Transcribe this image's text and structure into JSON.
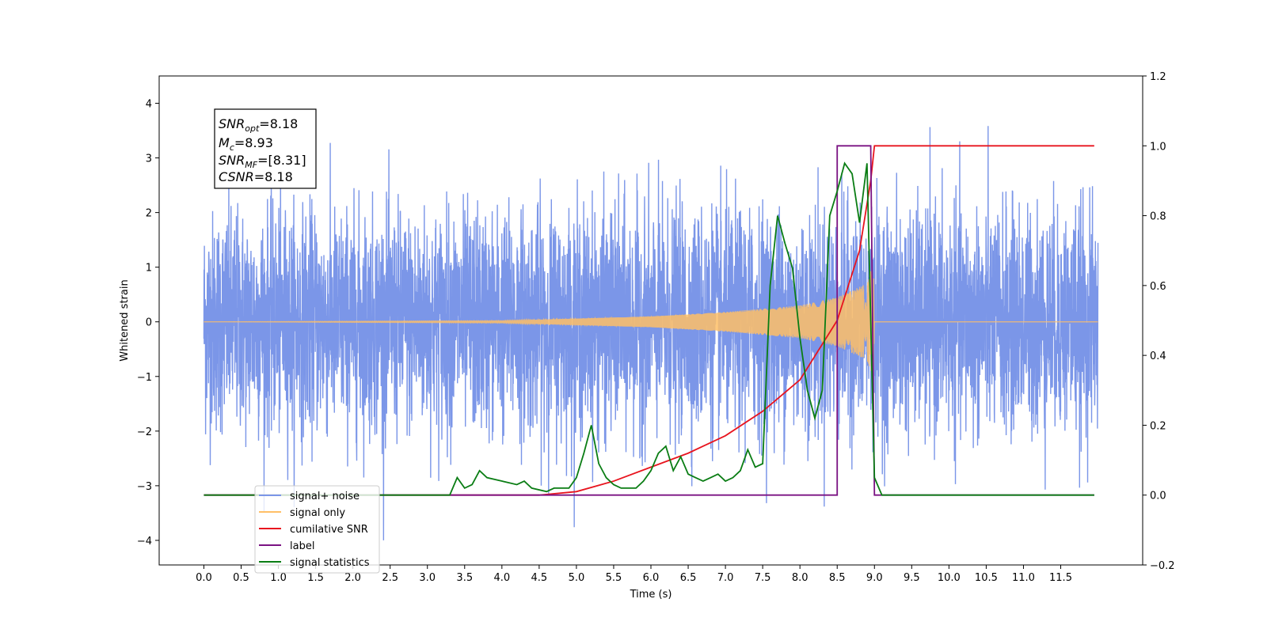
{
  "chart_data": {
    "type": "line",
    "xlabel": "Time (s)",
    "ylabel": "Whitened strain",
    "ylabel_right": "",
    "xlim": [
      -0.6,
      12.6
    ],
    "ylim": [
      -4.45,
      4.5
    ],
    "ylim_right": [
      -0.2,
      1.2
    ],
    "xticks": [
      0.0,
      0.5,
      1.0,
      1.5,
      2.0,
      2.5,
      3.0,
      3.5,
      4.0,
      4.5,
      5.0,
      5.5,
      6.0,
      6.5,
      7.0,
      7.5,
      8.0,
      8.5,
      9.0,
      9.5,
      10.0,
      10.5,
      11.0,
      11.5
    ],
    "xtick_labels": [
      "0.0",
      "0.5",
      "1.0",
      "1.5",
      "2.0",
      "2.5",
      "3.0",
      "3.5",
      "4.0",
      "4.5",
      "5.0",
      "5.5",
      "6.0",
      "6.5",
      "7.0",
      "7.5",
      "8.0",
      "8.5",
      "9.0",
      "9.5",
      "10.0",
      "10.5",
      "11.0",
      "11.5"
    ],
    "yticks_left": [
      -4,
      -3,
      -2,
      -1,
      0,
      1,
      2,
      3,
      4
    ],
    "ytick_labels_left": [
      "−4",
      "−3",
      "−2",
      "−1",
      "0",
      "1",
      "2",
      "3",
      "4"
    ],
    "yticks_right": [
      -0.2,
      0.0,
      0.2,
      0.4,
      0.6,
      0.8,
      1.0,
      1.2
    ],
    "ytick_labels_right": [
      "−0.2",
      "0.0",
      "0.2",
      "0.4",
      "0.6",
      "0.8",
      "1.0",
      "1.2"
    ],
    "grid": false,
    "legend_position": "bottom-left",
    "stats_box": {
      "snr_opt": {
        "base": "SNR",
        "sub": "opt",
        "value": "=8.18"
      },
      "mc": {
        "base": "M",
        "sub": "c",
        "value": "=8.93"
      },
      "snr_mf": {
        "base": "SNR",
        "sub": "MF",
        "value": "=[8.31]"
      },
      "csnr": {
        "base": "CSNR",
        "sub": "",
        "value": "=8.18"
      }
    },
    "series": [
      {
        "name": "signal+ noise",
        "axis": "left",
        "color": "#7b96e8",
        "kind": "noise",
        "x_range": [
          0.0,
          12.0
        ],
        "std": 1.0,
        "approx_range": [
          -4.0,
          4.1
        ]
      },
      {
        "name": "signal only",
        "axis": "left",
        "color": "#ffbf66",
        "kind": "chirp",
        "x_range": [
          0.0,
          9.0
        ],
        "amplitude_points": [
          [
            0.0,
            0.0
          ],
          [
            4.0,
            0.02
          ],
          [
            5.0,
            0.06
          ],
          [
            6.0,
            0.1
          ],
          [
            7.0,
            0.18
          ],
          [
            8.0,
            0.3
          ],
          [
            8.5,
            0.45
          ],
          [
            8.9,
            0.7
          ],
          [
            8.99,
            1.1
          ],
          [
            9.0,
            0.0
          ]
        ]
      },
      {
        "name": "cumilative SNR",
        "axis": "right",
        "color": "#e8141e",
        "points": [
          [
            0.0,
            0.0
          ],
          [
            4.5,
            0.0
          ],
          [
            5.0,
            0.01
          ],
          [
            5.5,
            0.04
          ],
          [
            6.0,
            0.08
          ],
          [
            6.5,
            0.12
          ],
          [
            7.0,
            0.17
          ],
          [
            7.5,
            0.24
          ],
          [
            8.0,
            0.33
          ],
          [
            8.5,
            0.5
          ],
          [
            8.8,
            0.7
          ],
          [
            8.95,
            0.9
          ],
          [
            9.0,
            1.0
          ],
          [
            11.95,
            1.0
          ]
        ]
      },
      {
        "name": "label",
        "axis": "right",
        "color": "#7a1282",
        "points": [
          [
            0.0,
            0.0
          ],
          [
            8.5,
            0.0
          ],
          [
            8.5,
            1.0
          ],
          [
            8.95,
            1.0
          ],
          [
            9.0,
            0.0
          ],
          [
            11.95,
            0.0
          ]
        ]
      },
      {
        "name": "signal statistics",
        "axis": "right",
        "color": "#0a7d14",
        "points": [
          [
            0.0,
            0.0
          ],
          [
            3.3,
            0.0
          ],
          [
            3.4,
            0.05
          ],
          [
            3.5,
            0.02
          ],
          [
            3.6,
            0.03
          ],
          [
            3.7,
            0.07
          ],
          [
            3.8,
            0.05
          ],
          [
            4.0,
            0.04
          ],
          [
            4.2,
            0.03
          ],
          [
            4.3,
            0.04
          ],
          [
            4.4,
            0.02
          ],
          [
            4.6,
            0.01
          ],
          [
            4.7,
            0.02
          ],
          [
            4.9,
            0.02
          ],
          [
            5.0,
            0.05
          ],
          [
            5.1,
            0.12
          ],
          [
            5.2,
            0.2
          ],
          [
            5.3,
            0.09
          ],
          [
            5.4,
            0.05
          ],
          [
            5.5,
            0.03
          ],
          [
            5.6,
            0.02
          ],
          [
            5.8,
            0.02
          ],
          [
            5.9,
            0.04
          ],
          [
            6.0,
            0.07
          ],
          [
            6.1,
            0.12
          ],
          [
            6.2,
            0.14
          ],
          [
            6.3,
            0.07
          ],
          [
            6.4,
            0.11
          ],
          [
            6.5,
            0.06
          ],
          [
            6.6,
            0.05
          ],
          [
            6.7,
            0.04
          ],
          [
            6.8,
            0.05
          ],
          [
            6.9,
            0.06
          ],
          [
            7.0,
            0.04
          ],
          [
            7.1,
            0.05
          ],
          [
            7.2,
            0.07
          ],
          [
            7.3,
            0.13
          ],
          [
            7.4,
            0.08
          ],
          [
            7.5,
            0.09
          ],
          [
            7.6,
            0.6
          ],
          [
            7.7,
            0.8
          ],
          [
            7.8,
            0.72
          ],
          [
            7.9,
            0.65
          ],
          [
            8.0,
            0.45
          ],
          [
            8.1,
            0.3
          ],
          [
            8.2,
            0.22
          ],
          [
            8.3,
            0.3
          ],
          [
            8.4,
            0.8
          ],
          [
            8.5,
            0.87
          ],
          [
            8.6,
            0.95
          ],
          [
            8.7,
            0.92
          ],
          [
            8.8,
            0.78
          ],
          [
            8.9,
            0.95
          ],
          [
            8.95,
            0.5
          ],
          [
            9.0,
            0.05
          ],
          [
            9.1,
            0.0
          ],
          [
            11.95,
            0.0
          ]
        ]
      }
    ]
  }
}
